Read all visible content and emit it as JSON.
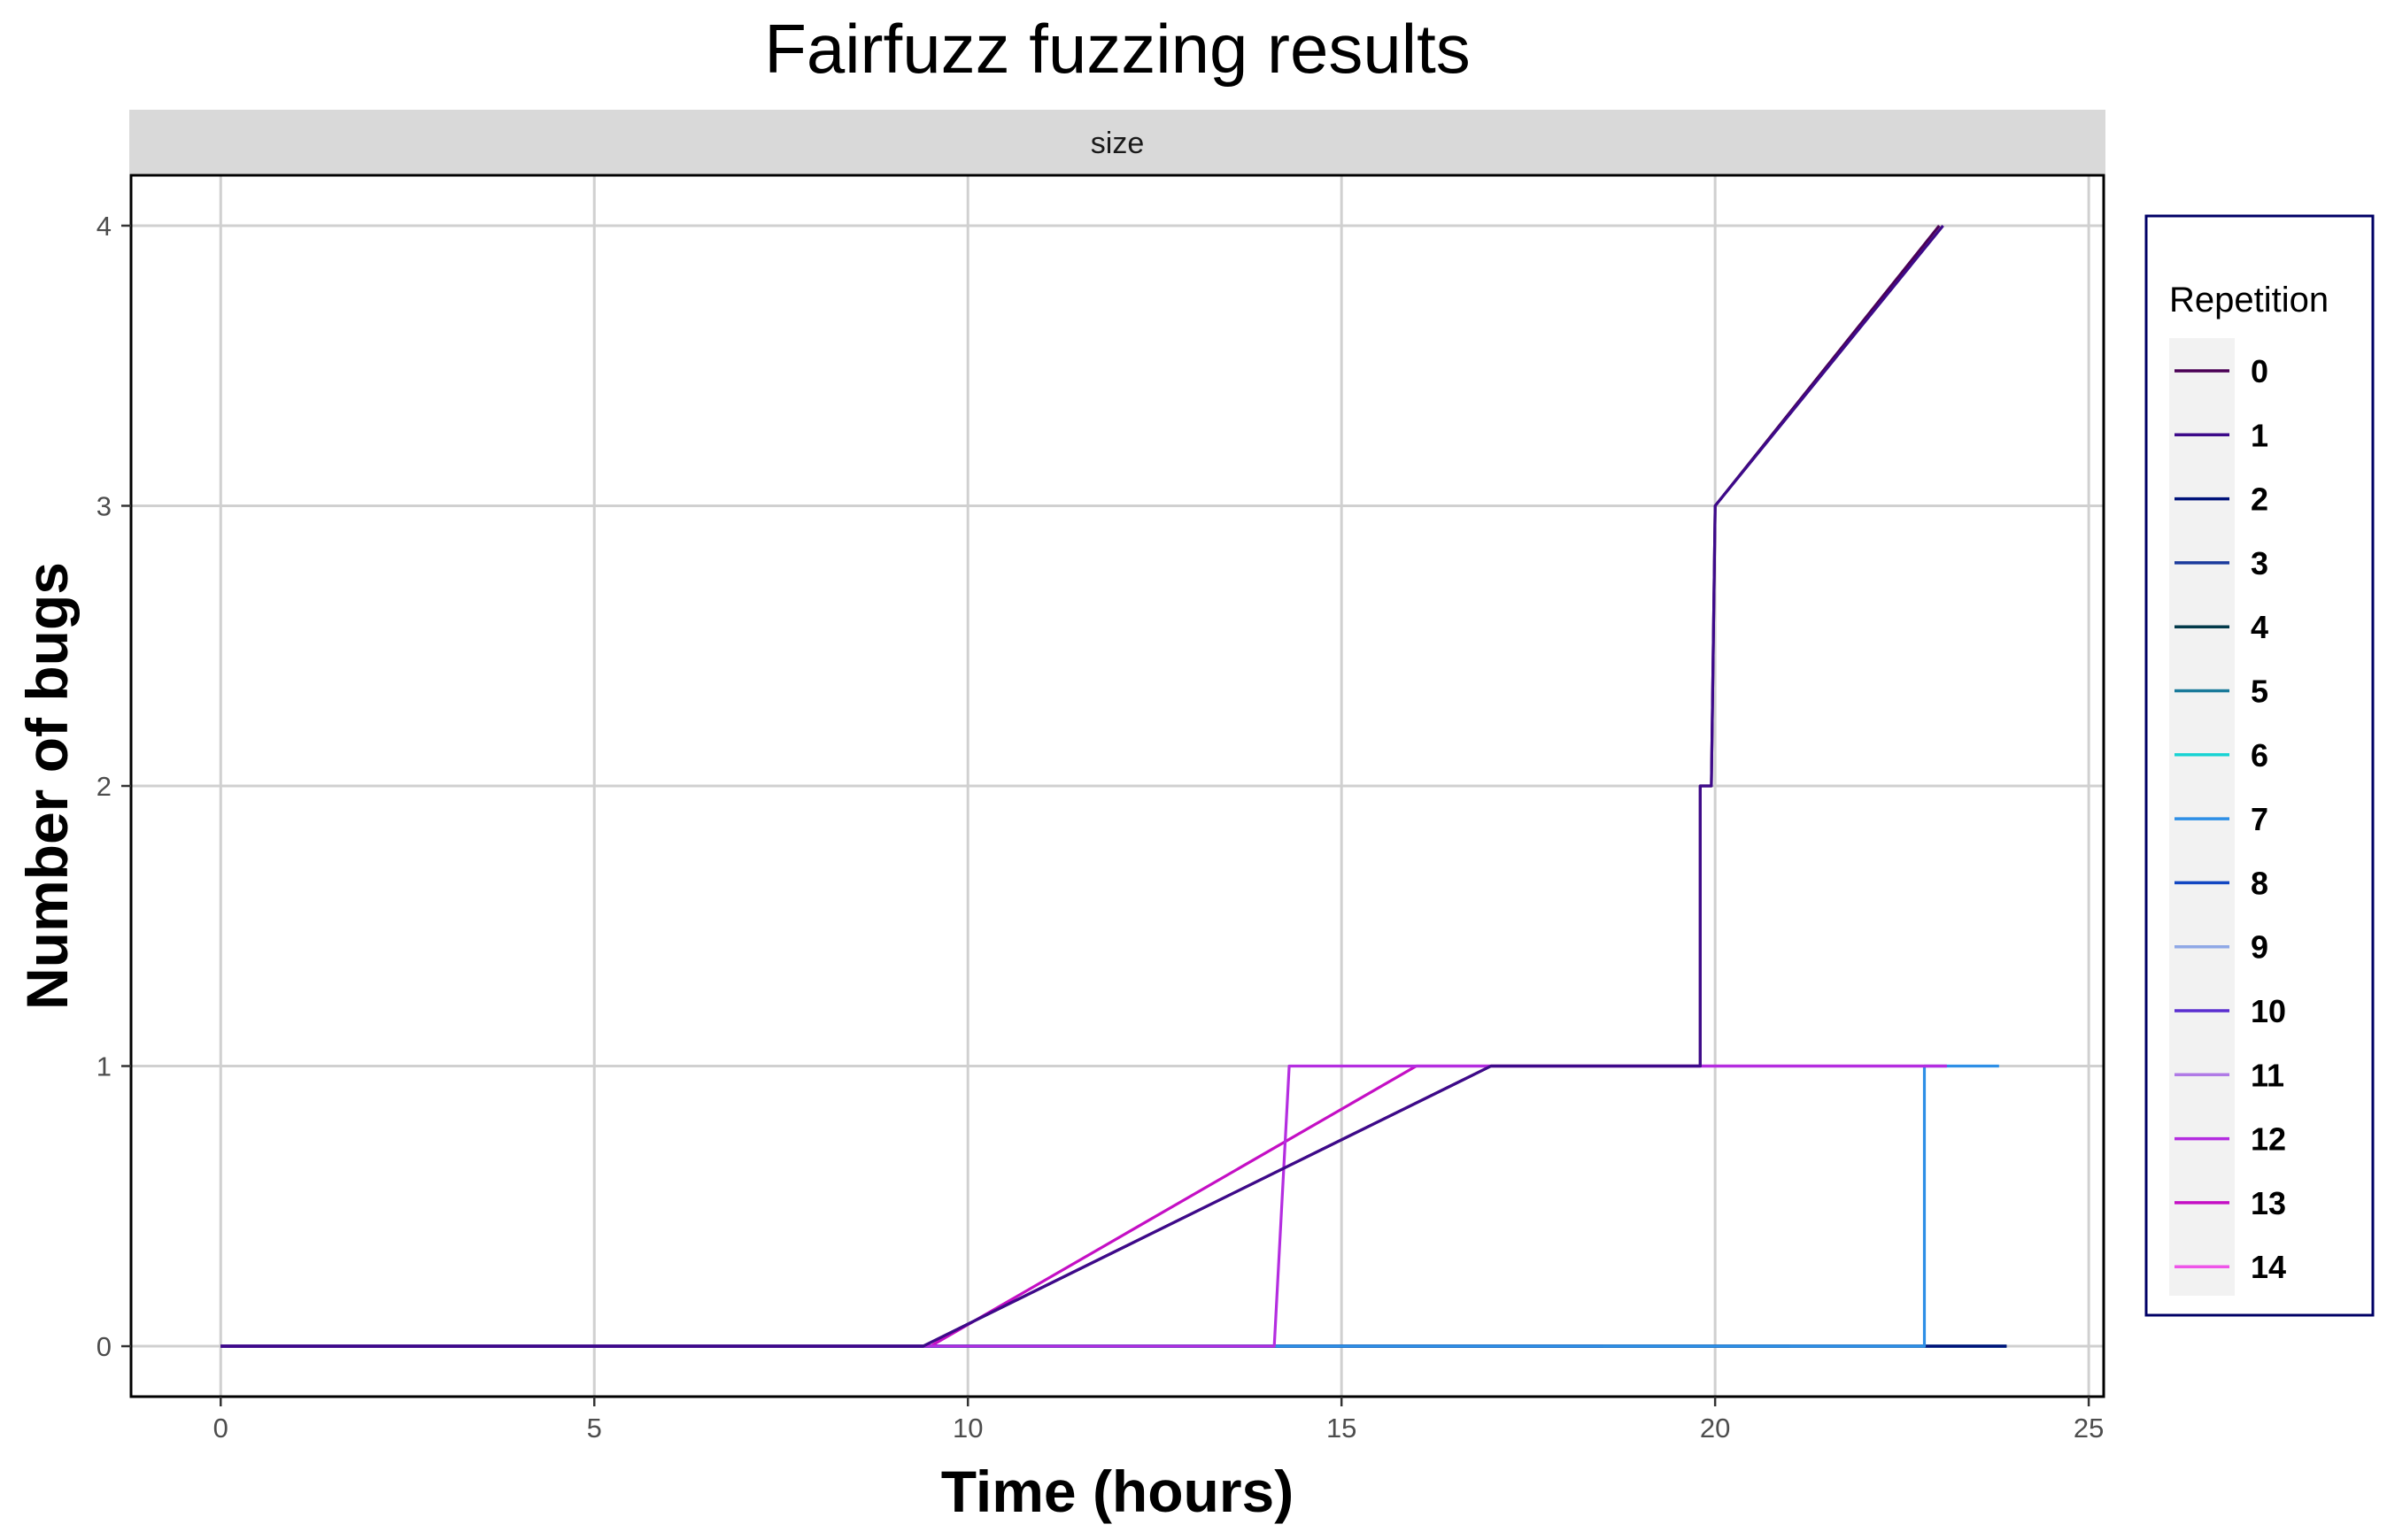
{
  "chart_data": {
    "type": "line",
    "title": "Fairfuzz fuzzing results",
    "facet_label": "size",
    "xlabel": "Time (hours)",
    "ylabel": "Number of bugs",
    "xlim": [
      -1.2,
      25.2
    ],
    "ylim": [
      -0.18,
      4.18
    ],
    "x_ticks": [
      0,
      5,
      10,
      15,
      20,
      25
    ],
    "y_ticks": [
      0,
      1,
      2,
      3,
      4
    ],
    "grid": true,
    "legend_title": "Repetition",
    "legend_position": "right",
    "series": [
      {
        "name": "0",
        "color": "#4b0055",
        "points": [
          [
            0,
            0
          ],
          [
            9.4,
            0
          ],
          [
            17.0,
            1
          ],
          [
            19.8,
            1
          ],
          [
            19.8,
            2
          ],
          [
            19.95,
            2
          ],
          [
            20.0,
            3
          ],
          [
            23.0,
            4
          ]
        ]
      },
      {
        "name": "1",
        "color": "#3d0a8a",
        "points": [
          [
            0,
            0
          ],
          [
            9.4,
            0
          ],
          [
            17.0,
            1
          ],
          [
            19.8,
            1
          ],
          [
            19.8,
            2
          ],
          [
            19.95,
            2
          ],
          [
            20.0,
            3
          ],
          [
            23.05,
            4
          ]
        ]
      },
      {
        "name": "2",
        "color": "#00137a",
        "points": [
          [
            0,
            0
          ],
          [
            22.8,
            0
          ],
          [
            23.9,
            0
          ]
        ]
      },
      {
        "name": "3",
        "color": "#1a3a9c",
        "points": [
          [
            0,
            0
          ],
          [
            23.9,
            0
          ]
        ]
      },
      {
        "name": "4",
        "color": "#033a4a",
        "points": [
          [
            0,
            0
          ],
          [
            23.9,
            0
          ]
        ]
      },
      {
        "name": "5",
        "color": "#1a7a9a",
        "points": [
          [
            0,
            0
          ],
          [
            23.9,
            0
          ]
        ]
      },
      {
        "name": "6",
        "color": "#19d3d3",
        "points": [
          [
            0,
            0
          ],
          [
            23.9,
            0
          ]
        ]
      },
      {
        "name": "7",
        "color": "#2e8fe6",
        "points": [
          [
            0,
            0
          ],
          [
            22.8,
            0
          ],
          [
            22.8,
            1
          ],
          [
            23.8,
            1
          ]
        ]
      },
      {
        "name": "8",
        "color": "#1247c2",
        "points": [
          [
            0,
            0
          ],
          [
            21.0,
            0
          ]
        ]
      },
      {
        "name": "9",
        "color": "#8fa8e6",
        "points": [
          [
            0,
            0
          ],
          [
            21.0,
            0
          ]
        ]
      },
      {
        "name": "10",
        "color": "#5b2fd0",
        "points": [
          [
            0,
            0
          ],
          [
            18.5,
            0
          ]
        ]
      },
      {
        "name": "11",
        "color": "#b07ae6",
        "points": [
          [
            0,
            0
          ],
          [
            18.5,
            0
          ]
        ]
      },
      {
        "name": "12",
        "color": "#b42de0",
        "points": [
          [
            0,
            0
          ],
          [
            14.1,
            0
          ],
          [
            14.3,
            1
          ],
          [
            23.1,
            1
          ]
        ]
      },
      {
        "name": "13",
        "color": "#c40fc4",
        "points": [
          [
            0,
            0
          ],
          [
            9.5,
            0
          ],
          [
            16.0,
            1
          ],
          [
            23.1,
            1
          ]
        ]
      },
      {
        "name": "14",
        "color": "#ee55e8",
        "points": [
          [
            0,
            0
          ],
          [
            18.5,
            0
          ]
        ]
      }
    ]
  }
}
